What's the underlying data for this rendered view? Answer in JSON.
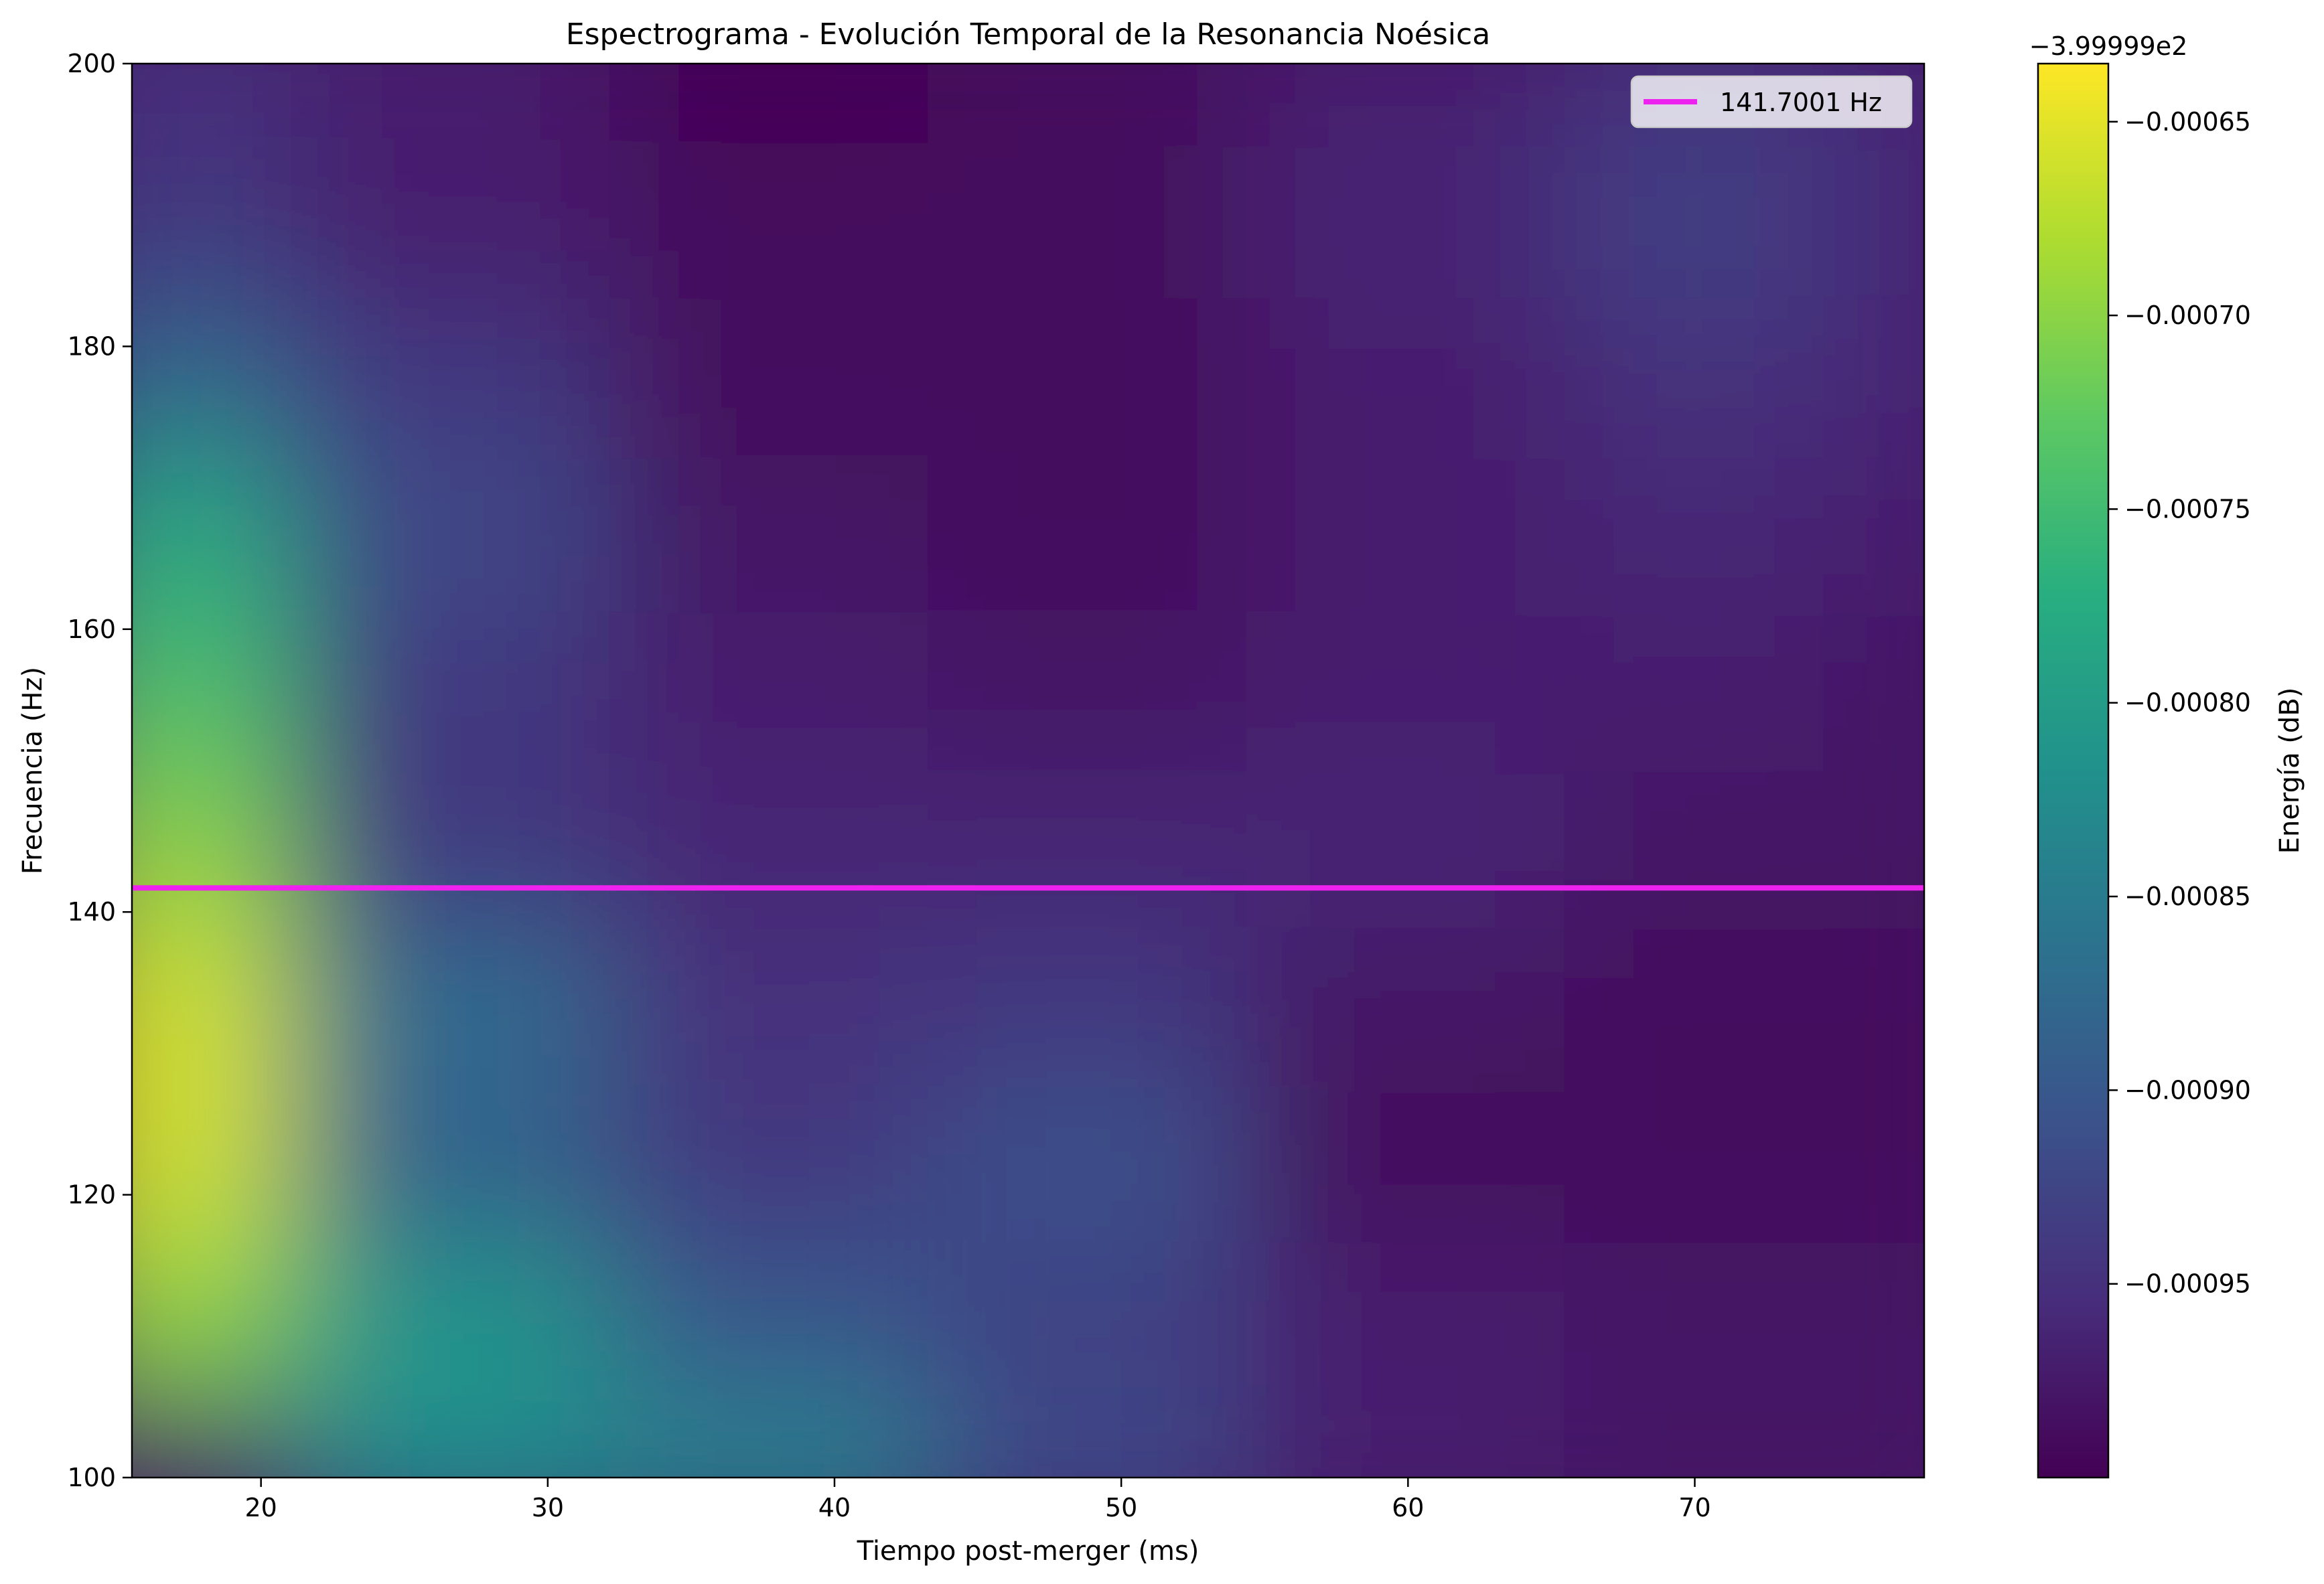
{
  "chart_data": {
    "type": "heatmap",
    "title": "Espectrograma - Evolución Temporal de la Resonancia Noésica",
    "xlabel": "Tiempo post-merger (ms)",
    "ylabel": "Frecuencia (Hz)",
    "xlim": [
      15.5,
      78.0
    ],
    "ylim": [
      100,
      200
    ],
    "x_ticks": [
      20,
      30,
      40,
      50,
      60,
      70
    ],
    "y_ticks": [
      100,
      120,
      140,
      160,
      180,
      200
    ],
    "colormap": "viridis",
    "colorbar": {
      "label": "Energía (dB)",
      "offset_text": "−3.99999e2",
      "range": [
        -0.001,
        -0.000635
      ],
      "ticks": [
        -0.00065,
        -0.0007,
        -0.00075,
        -0.0008,
        -0.00085,
        -0.0009,
        -0.00095
      ],
      "tick_labels": [
        "−0.00065",
        "−0.00070",
        "−0.00075",
        "−0.00080",
        "−0.00085",
        "−0.00090",
        "−0.00095"
      ]
    },
    "energy_grid": {
      "t": [
        15.5,
        26.6,
        37.7,
        48.8,
        59.9,
        71.0,
        78.0
      ],
      "f": [
        100.0,
        111.1,
        122.2,
        133.3,
        144.4,
        155.6,
        166.7,
        177.8,
        188.9,
        200.0
      ],
      "values": [
        [
          -0.00098,
          -0.00083,
          -0.00084,
          -0.00092,
          -0.00097,
          -0.00098,
          -0.00098
        ],
        [
          -0.0007,
          -0.00081,
          -0.0009,
          -0.00093,
          -0.00097,
          -0.00098,
          -0.00098
        ],
        [
          -0.00066,
          -0.00089,
          -0.00094,
          -0.00091,
          -0.00099,
          -0.00099,
          -0.00099
        ],
        [
          -0.00066,
          -0.00087,
          -0.00095,
          -0.00094,
          -0.00098,
          -0.00099,
          -0.00099
        ],
        [
          -0.0007,
          -0.00094,
          -0.00096,
          -0.00096,
          -0.00096,
          -0.00098,
          -0.00098
        ],
        [
          -0.00074,
          -0.00094,
          -0.00097,
          -0.00098,
          -0.00097,
          -0.00097,
          -0.00098
        ],
        [
          -0.00078,
          -0.00092,
          -0.00098,
          -0.00099,
          -0.00097,
          -0.00096,
          -0.00097
        ],
        [
          -0.00088,
          -0.00094,
          -0.00099,
          -0.00099,
          -0.00097,
          -0.00095,
          -0.00096
        ],
        [
          -0.00094,
          -0.00097,
          -0.00099,
          -0.00099,
          -0.00096,
          -0.00093,
          -0.00096
        ],
        [
          -0.00095,
          -0.00097,
          -0.001,
          -0.00099,
          -0.00097,
          -0.00095,
          -0.00096
        ]
      ]
    },
    "series": [
      {
        "name": "141.7001 Hz",
        "y": 141.7001,
        "color": "#ee22ee",
        "kind": "hline"
      }
    ],
    "legend_placement": "top-right",
    "grid": false
  }
}
